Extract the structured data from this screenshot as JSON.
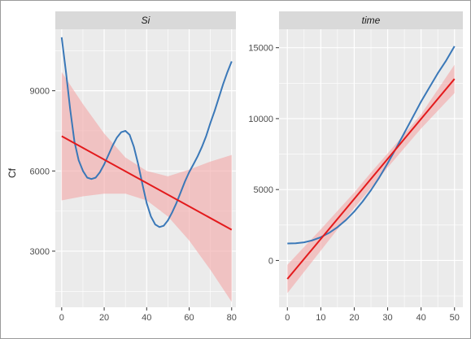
{
  "chart_data": {
    "type": "line",
    "ylabel": "Cf",
    "colors": {
      "panel_background": "#ebebeb",
      "grid": "#ffffff",
      "strip_background": "#d9d9d9",
      "smooth_line": "#3a78b8",
      "linear_line": "#e31a1c",
      "confidence_band": "#f4a6a6"
    },
    "grid": true,
    "panels": [
      {
        "title": "Si",
        "xlim": [
          -3,
          82
        ],
        "ylim": [
          900,
          11300
        ],
        "x_ticks": [
          0,
          20,
          40,
          60,
          80
        ],
        "y_ticks": [
          3000,
          6000,
          9000
        ],
        "y_tick_labels": [
          "3000",
          "6000",
          "9000"
        ],
        "smooth": {
          "x": [
            0,
            2,
            4,
            6,
            8,
            10,
            12,
            14,
            16,
            18,
            20,
            22,
            24,
            26,
            28,
            30,
            32,
            34,
            36,
            38,
            40,
            42,
            44,
            46,
            48,
            50,
            52,
            54,
            56,
            58,
            60,
            62,
            64,
            66,
            68,
            70,
            72,
            74,
            76,
            78,
            80
          ],
          "y": [
            11000,
            9700,
            8300,
            7100,
            6400,
            6000,
            5750,
            5700,
            5750,
            5950,
            6250,
            6600,
            6950,
            7250,
            7450,
            7500,
            7350,
            6900,
            6250,
            5500,
            4800,
            4300,
            4000,
            3900,
            3950,
            4150,
            4450,
            4800,
            5200,
            5600,
            5950,
            6250,
            6550,
            6900,
            7300,
            7800,
            8250,
            8750,
            9250,
            9700,
            10100
          ]
        },
        "linear": {
          "x": [
            0,
            80
          ],
          "y": [
            7300,
            3800
          ]
        },
        "band": {
          "x": [
            0,
            10,
            20,
            30,
            40,
            50,
            60,
            70,
            80
          ],
          "lower": [
            4900,
            5050,
            5150,
            5150,
            4900,
            4300,
            3400,
            2300,
            1100
          ],
          "upper": [
            9700,
            8500,
            7400,
            6500,
            6000,
            5800,
            6050,
            6350,
            6600
          ]
        }
      },
      {
        "title": "time",
        "xlim": [
          -2.5,
          52.5
        ],
        "ylim": [
          -3300,
          16300
        ],
        "x_ticks": [
          0,
          10,
          20,
          30,
          40,
          50
        ],
        "y_ticks": [
          0,
          5000,
          10000,
          15000
        ],
        "y_tick_labels": [
          "0",
          "5000",
          "10000",
          "15000"
        ],
        "smooth": {
          "x": [
            0,
            2.5,
            5,
            7.5,
            10,
            12.5,
            15,
            17.5,
            20,
            22.5,
            25,
            27.5,
            30,
            32.5,
            35,
            37.5,
            40,
            42.5,
            45,
            47.5,
            50
          ],
          "y": [
            1200,
            1210,
            1280,
            1420,
            1640,
            1950,
            2350,
            2850,
            3450,
            4150,
            4950,
            5850,
            6850,
            7900,
            9000,
            10100,
            11200,
            12200,
            13200,
            14100,
            15100
          ]
        },
        "linear": {
          "x": [
            0,
            50
          ],
          "y": [
            -1300,
            12800
          ]
        },
        "band": {
          "x": [
            0,
            10,
            20,
            25,
            30,
            40,
            50
          ],
          "lower": [
            -2300,
            700,
            3700,
            5100,
            6550,
            9300,
            11800
          ],
          "upper": [
            -300,
            2200,
            4800,
            6200,
            7550,
            10300,
            13800
          ]
        }
      }
    ]
  }
}
